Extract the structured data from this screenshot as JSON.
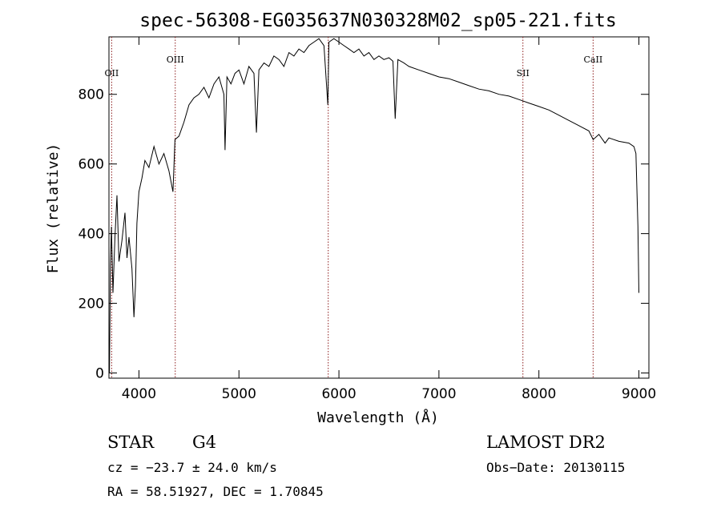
{
  "chart_data": {
    "type": "line",
    "title": "spec-56308-EG035637N030328M02_sp05-221.fits",
    "xlabel": "Wavelength (Å)",
    "ylabel": "Flux (relative)",
    "xlim": [
      3700,
      9100
    ],
    "ylim": [
      -15,
      965
    ],
    "x_ticks": [
      4000,
      5000,
      6000,
      7000,
      8000,
      9000
    ],
    "x_tick_labels": [
      "4000",
      "5000",
      "6000",
      "7000",
      "8000",
      "9000"
    ],
    "y_ticks": [
      0,
      200,
      400,
      600,
      800
    ],
    "y_tick_labels": [
      "0",
      "200",
      "400",
      "600",
      "800"
    ],
    "grid": false,
    "line_color": "#000000",
    "marker_color": "#8b1a1a",
    "lines": [
      {
        "label": "OII",
        "x": 3727
      },
      {
        "label": "OIII",
        "x": 4363
      },
      {
        "label": "",
        "x": 5893
      },
      {
        "label": "SII",
        "x": 7840
      },
      {
        "label": "CaII",
        "x": 8542
      }
    ],
    "series": [
      {
        "x": [
          3705,
          3715,
          3725,
          3740,
          3760,
          3780,
          3800,
          3830,
          3860,
          3880,
          3900,
          3930,
          3950,
          3965,
          3980,
          4000,
          4030,
          4060,
          4100,
          4150,
          4200,
          4250,
          4300,
          4340,
          4360,
          4400,
          4450,
          4500,
          4550,
          4600,
          4650,
          4700,
          4750,
          4800,
          4850,
          4861,
          4880,
          4920,
          4960,
          5000,
          5050,
          5100,
          5150,
          5175,
          5200,
          5250,
          5300,
          5350,
          5400,
          5450,
          5500,
          5550,
          5600,
          5650,
          5700,
          5750,
          5800,
          5850,
          5889,
          5900,
          5950,
          6000,
          6050,
          6100,
          6150,
          6200,
          6250,
          6300,
          6350,
          6400,
          6450,
          6500,
          6540,
          6563,
          6590,
          6650,
          6700,
          6800,
          6900,
          7000,
          7100,
          7200,
          7300,
          7400,
          7500,
          7600,
          7700,
          7800,
          7900,
          8000,
          8100,
          8200,
          8300,
          8400,
          8500,
          8542,
          8600,
          8662,
          8700,
          8800,
          8900,
          8950,
          8970,
          8990,
          9000
        ],
        "y": [
          0,
          310,
          420,
          230,
          390,
          510,
          320,
          380,
          460,
          330,
          390,
          300,
          160,
          250,
          430,
          520,
          560,
          610,
          590,
          650,
          600,
          630,
          580,
          520,
          670,
          680,
          720,
          770,
          790,
          800,
          820,
          790,
          830,
          850,
          800,
          640,
          850,
          830,
          860,
          870,
          830,
          880,
          860,
          690,
          870,
          890,
          880,
          910,
          900,
          880,
          920,
          910,
          930,
          920,
          940,
          950,
          960,
          940,
          770,
          950,
          960,
          950,
          940,
          930,
          920,
          930,
          910,
          920,
          900,
          910,
          900,
          905,
          895,
          730,
          900,
          890,
          880,
          870,
          860,
          850,
          845,
          835,
          825,
          815,
          810,
          800,
          795,
          785,
          775,
          765,
          755,
          740,
          725,
          710,
          695,
          670,
          685,
          660,
          675,
          665,
          660,
          650,
          630,
          420,
          230
        ]
      }
    ]
  },
  "footer": {
    "obj_class": "STAR",
    "subclass": "G4",
    "survey": "LAMOST DR2",
    "cz": "cz = −23.7 ± 24.0 km/s",
    "obs_date": "Obs−Date: 20130115",
    "coords": "RA =  58.51927, DEC =   1.70845"
  }
}
